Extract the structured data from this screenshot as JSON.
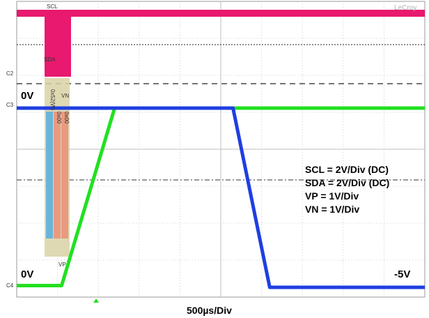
{
  "chart_data": {
    "type": "line",
    "title": "",
    "brand": "LeCroy",
    "timebase": "500µs/Div",
    "scales": [
      "SCL = 2V/Div (DC)",
      "SDA = 2V/Div (DC)",
      "VP = 1V/Div",
      "VN = 1V/Div"
    ],
    "labels": {
      "zero_top": "0V",
      "zero_bottom": "0V",
      "neg5": "-5V",
      "scl": "SCL",
      "sda": "SDA",
      "vp": "VP",
      "vn": "VN",
      "ch2": "C2",
      "ch3": "C3",
      "ch4": "C4",
      "decode_a": "0x52(W)",
      "decode_b": "0x00",
      "decode_c": "0x00"
    },
    "grid": true,
    "x_divisions": 10,
    "y_divisions": 8,
    "x_unit": "div",
    "y_unit": "div",
    "series": [
      {
        "name": "VP",
        "color": "#22e022",
        "x": [
          0,
          1.1,
          2.4,
          10
        ],
        "y": [
          0.05,
          0.05,
          5.1,
          5.1
        ]
      },
      {
        "name": "VN",
        "color": "#1f3fe0",
        "x": [
          0,
          5.3,
          6.2,
          10
        ],
        "y": [
          5.1,
          5.1,
          0.0,
          0.0
        ]
      }
    ],
    "bus": {
      "scl_burst": [
        0.4,
        1.1
      ],
      "decode_span": [
        0.4,
        1.1
      ],
      "colors": {
        "scl": "#e8196e",
        "decode_bg": "#d9d2a6",
        "decode_a": "#6ab4d8",
        "decode_b": "#e89a80",
        "text": "#b07020"
      }
    }
  }
}
